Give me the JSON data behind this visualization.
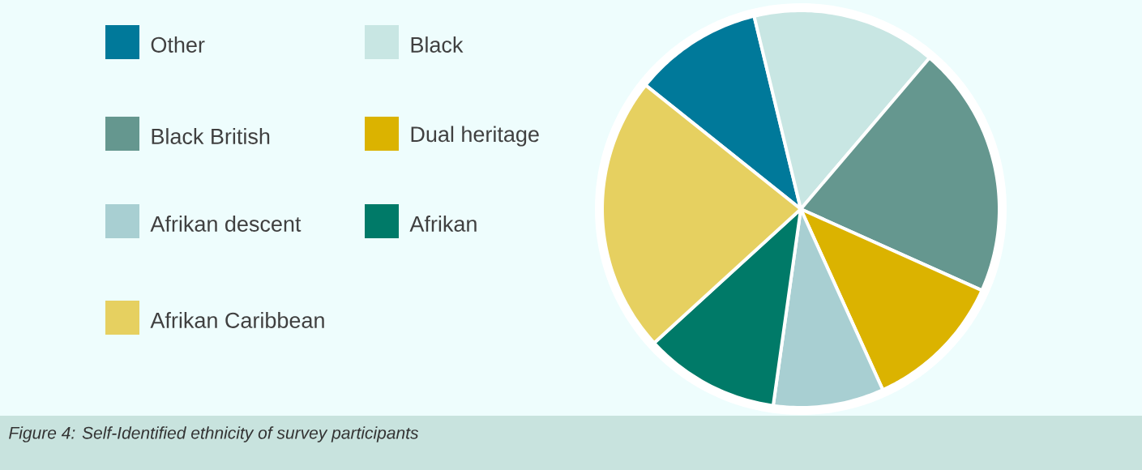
{
  "chart_data": {
    "type": "pie",
    "categories": [
      "Other",
      "Black",
      "Black British",
      "Dual heritage",
      "Afrikan descent",
      "Afrikan",
      "Afrikan Caribbean"
    ],
    "values": [
      10.5,
      15,
      20.5,
      11.5,
      9,
      11,
      22.5
    ],
    "colors": [
      "#00799a",
      "#c8e6e3",
      "#65978f",
      "#dbb300",
      "#a8cfd2",
      "#007a68",
      "#e6d060"
    ],
    "legend": "left",
    "annotations": [
      "Figure 4: Self-Identified ethnicity of survey participants"
    ]
  }
}
